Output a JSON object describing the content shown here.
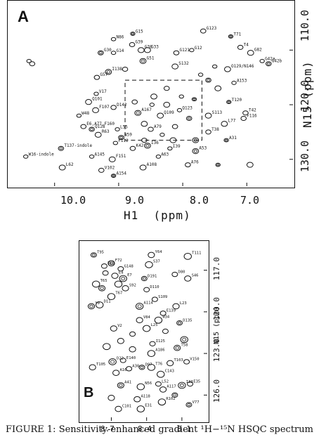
{
  "figure": {
    "caption": "FIGURE 1:  Sensitivity-enhanced gradient ¹H−¹⁵N HSQC spectrum"
  },
  "panel_a": {
    "letter": "A",
    "x_axis_label": "H1  (ppm)",
    "y_axis_label": "N15  (ppm)",
    "x_ticks": [
      "10.0",
      "9.0",
      "8.0",
      "7.0"
    ],
    "y_ticks": [
      "110.0",
      "120.0",
      "130.0"
    ],
    "peak_labels": [
      "G15",
      "G39",
      "G38",
      "N86",
      "G30",
      "G33",
      "G14",
      "G121",
      "G51",
      "G12",
      "G123",
      "S132",
      "T71",
      "T4",
      "G82",
      "G42a",
      "G42b",
      "O129/N146",
      "A153",
      "G57",
      "I138",
      "V17",
      "D142",
      "Q101",
      "T120",
      "T42",
      "F107",
      "W48",
      "Q128",
      "R63",
      "L55",
      "E6,A77,F160",
      "A53",
      "I39",
      "A76",
      "A108",
      "A154",
      "V102",
      "L62",
      "W16-indole",
      "T137-indole",
      "F151",
      "A145",
      "K42",
      "I36",
      "A63",
      "T38",
      "S113",
      "A31",
      "F116",
      "L77",
      "F112",
      "N59",
      "Q109",
      "Q123",
      "A79",
      "A167"
    ]
  },
  "panel_b": {
    "letter": "B",
    "x_axis_label": "H1  (ppm)",
    "y_axis_label": "N15  (ppm)",
    "x_ticks": [
      "8.7",
      "8.4",
      "8.1"
    ],
    "y_ticks": [
      "117.0",
      "120.0",
      "123.0",
      "126.0"
    ],
    "peak_labels": [
      "T95",
      "Y64",
      "T111",
      "T63",
      "F72",
      "S37",
      "G148",
      "E4",
      "E7",
      "D80",
      "S46",
      "T65",
      "D191",
      "S92",
      "T67",
      "D110",
      "Y9",
      "D11",
      "S109",
      "L23",
      "A114",
      "E139",
      "V84",
      "W34",
      "D135",
      "V2",
      "L25",
      "I125",
      "T58",
      "A186",
      "V150",
      "T105",
      "D22",
      "E140",
      "T103",
      "T76",
      "D97",
      "A16",
      "C143",
      "A30",
      "A41",
      "N56",
      "L52",
      "A117",
      "I33",
      "E35",
      "A118",
      "R102",
      "V77",
      "C101",
      "E31"
    ]
  },
  "colors": {
    "ink": "#111111",
    "background": "#ffffff"
  },
  "chart_data": [
    {
      "type": "scatter",
      "title": "",
      "panel": "A",
      "xlabel": "H1  (ppm)",
      "ylabel": "N15  (ppm)",
      "xlim": [
        10.6,
        6.4
      ],
      "ylim": [
        102.5,
        133.5
      ],
      "x_ticks": [
        10.0,
        9.0,
        8.0,
        7.0
      ],
      "y_ticks": [
        110.0,
        120.0,
        130.0
      ],
      "zoom_box": {
        "x": [
          8.9,
          7.7
        ],
        "y": [
          115.5,
          126.5
        ]
      },
      "series": [
        {
          "points": [
            [
              8.78,
              107.0,
              "G15"
            ],
            [
              8.79,
              109.0,
              "G39"
            ],
            [
              8.65,
              110.0,
              "G38"
            ],
            [
              9.08,
              108.0,
              "N86"
            ],
            [
              9.28,
              110.5,
              "G30"
            ],
            [
              8.55,
              110.0,
              "G33"
            ],
            [
              9.08,
              110.5,
              "G14"
            ],
            [
              8.1,
              110.5,
              "G121"
            ],
            [
              8.62,
              112.0,
              "G51"
            ],
            [
              7.86,
              110.0,
              "G12"
            ],
            [
              7.68,
              106.5,
              "G123"
            ],
            [
              8.12,
              113.0,
              "S132"
            ],
            [
              7.25,
              107.5,
              "T71"
            ],
            [
              7.1,
              109.5,
              "T4"
            ],
            [
              6.94,
              110.5,
              "G82"
            ],
            [
              6.76,
              112.0,
              "G42a"
            ],
            [
              6.66,
              112.5,
              "G42b"
            ],
            [
              7.3,
              113.5,
              "O129/N146"
            ],
            [
              7.2,
              116.0,
              "A153"
            ],
            [
              9.34,
              115.0,
              "G57"
            ],
            [
              9.16,
              114.0,
              "I138"
            ],
            [
              9.35,
              118.0,
              "V17"
            ],
            [
              9.08,
              120.5,
              "D142"
            ],
            [
              9.47,
              119.5,
              "Q101"
            ],
            [
              7.28,
              119.5,
              "T120"
            ],
            [
              7.02,
              121.5,
              "T42"
            ],
            [
              9.36,
              121.0,
              "F107"
            ],
            [
              9.62,
              122.0,
              "W48"
            ],
            [
              9.42,
              124.5,
              "Q128"
            ],
            [
              9.32,
              125.5,
              "R63"
            ],
            [
              9.02,
              124.5,
              "L55"
            ],
            [
              9.55,
              124.0,
              "E6,A77,F160"
            ],
            [
              7.8,
              128.5,
              "A53"
            ],
            [
              8.2,
              128.0,
              "I39"
            ],
            [
              7.92,
              131.0,
              "A76"
            ],
            [
              8.62,
              131.5,
              "A108"
            ],
            [
              9.08,
              133.0,
              "A154"
            ],
            [
              9.27,
              132.0,
              "V102"
            ],
            [
              9.88,
              131.5,
              "L62"
            ],
            [
              10.45,
              129.5,
              "W16-indole"
            ],
            [
              9.9,
              128.0,
              "T137-indole"
            ],
            [
              9.1,
              130.0,
              "F151"
            ],
            [
              9.42,
              129.5,
              "A145"
            ],
            [
              8.78,
              128.0,
              "K42"
            ],
            [
              8.55,
              127.5,
              "I36"
            ],
            [
              8.38,
              129.5,
              "A63"
            ],
            [
              7.6,
              125.0,
              "T38"
            ],
            [
              7.6,
              122.0,
              "S113"
            ],
            [
              7.32,
              126.5,
              "A31"
            ],
            [
              7.05,
              122.5,
              "F116"
            ],
            [
              7.35,
              123.5,
              "L77"
            ],
            [
              9.05,
              127.0,
              "F112"
            ],
            [
              8.96,
              126.0,
              "N59"
            ],
            [
              8.35,
              122.0,
              "Q109"
            ],
            [
              8.05,
              121.0,
              "Q123"
            ],
            [
              8.5,
              124.5,
              "A79"
            ],
            [
              8.7,
              121.5,
              "A167"
            ],
            [
              10.4,
              112.0,
              ""
            ],
            [
              10.35,
              112.5,
              ""
            ],
            [
              6.95,
              131.0,
              ""
            ],
            [
              7.45,
              131.0,
              ""
            ],
            [
              8.25,
              117.0,
              ""
            ],
            [
              8.45,
              118.5,
              ""
            ],
            [
              8.02,
              118.5,
              ""
            ],
            [
              7.9,
              122.5,
              ""
            ],
            [
              8.6,
              123.5,
              ""
            ],
            [
              8.32,
              125.5,
              ""
            ],
            [
              8.12,
              124.0,
              ""
            ],
            [
              7.8,
              126.5,
              ""
            ],
            [
              8.48,
              120.0,
              ""
            ],
            [
              8.75,
              119.5,
              ""
            ],
            [
              8.25,
              120.0,
              ""
            ],
            [
              7.82,
              119.0,
              ""
            ],
            [
              8.6,
              126.5,
              ""
            ],
            [
              8.15,
              126.5,
              ""
            ],
            [
              7.72,
              114.5,
              ""
            ],
            [
              7.6,
              115.5,
              ""
            ],
            [
              7.45,
              117.0,
              ""
            ],
            [
              7.5,
              113.0,
              ""
            ],
            [
              8.9,
              113.5,
              ""
            ]
          ]
        }
      ]
    },
    {
      "type": "scatter",
      "title": "",
      "panel": "B",
      "xlabel": "H1  (ppm)",
      "ylabel": "N15  (ppm)",
      "xlim": [
        8.9,
        7.95
      ],
      "ylim": [
        115.5,
        127.3
      ],
      "x_ticks": [
        8.7,
        8.4,
        8.1
      ],
      "y_ticks": [
        117.0,
        120.0,
        123.0,
        126.0
      ],
      "series": [
        {
          "points": [
            [
              8.85,
              115.9,
              "T95"
            ],
            [
              8.36,
              115.9,
              "Y64"
            ],
            [
              8.05,
              116.0,
              "T111"
            ],
            [
              8.76,
              116.7,
              "T63"
            ],
            [
              8.7,
              116.5,
              "F72"
            ],
            [
              8.38,
              116.6,
              "S37"
            ],
            [
              8.62,
              116.9,
              "G148"
            ],
            [
              8.67,
              117.4,
              "E4"
            ],
            [
              8.6,
              117.6,
              "E7"
            ],
            [
              8.16,
              117.3,
              "D80"
            ],
            [
              8.05,
              117.6,
              "S46"
            ],
            [
              8.83,
              118.0,
              "T65"
            ],
            [
              8.42,
              117.6,
              "D191"
            ],
            [
              8.58,
              118.3,
              "S92"
            ],
            [
              8.7,
              118.9,
              "T67"
            ],
            [
              8.4,
              118.4,
              "D110"
            ],
            [
              8.87,
              119.6,
              "Y9"
            ],
            [
              8.8,
              119.5,
              "D11"
            ],
            [
              8.33,
              119.1,
              "S109"
            ],
            [
              8.15,
              119.6,
              "L23"
            ],
            [
              8.46,
              119.6,
              "A114"
            ],
            [
              8.26,
              120.1,
              "E139"
            ],
            [
              8.46,
              120.6,
              "V84"
            ],
            [
              8.3,
              120.6,
              "W34"
            ],
            [
              8.12,
              120.8,
              "D135"
            ],
            [
              8.68,
              121.2,
              "V2"
            ],
            [
              8.4,
              121.2,
              "L25"
            ],
            [
              8.35,
              122.3,
              "I125"
            ],
            [
              8.14,
              122.6,
              "T58"
            ],
            [
              8.36,
              123.0,
              "A186"
            ],
            [
              8.06,
              123.6,
              "V150"
            ],
            [
              8.86,
              124.0,
              "T105"
            ],
            [
              8.69,
              123.6,
              "D22"
            ],
            [
              8.6,
              123.5,
              "E140"
            ],
            [
              8.2,
              123.7,
              "T103"
            ],
            [
              8.36,
              124.0,
              "T76"
            ],
            [
              8.44,
              124.0,
              "D97"
            ],
            [
              8.66,
              124.4,
              "A16"
            ],
            [
              8.28,
              124.5,
              "C143"
            ],
            [
              8.55,
              124.1,
              "A30"
            ],
            [
              8.62,
              125.3,
              "A41"
            ],
            [
              8.45,
              125.4,
              "N56"
            ],
            [
              8.3,
              125.2,
              "L52"
            ],
            [
              8.26,
              125.6,
              "A117"
            ],
            [
              8.1,
              125.3,
              "I33"
            ],
            [
              8.03,
              125.2,
              "E35"
            ],
            [
              8.48,
              126.3,
              "A118"
            ],
            [
              8.27,
              126.5,
              "R102"
            ],
            [
              8.04,
              126.7,
              "V77"
            ],
            [
              8.64,
              127.0,
              "C101"
            ],
            [
              8.45,
              127.0,
              "E31"
            ],
            [
              8.75,
              117.2,
              ""
            ],
            [
              8.78,
              118.3,
              ""
            ],
            [
              8.64,
              118.0,
              ""
            ],
            [
              8.52,
              121.6,
              ""
            ],
            [
              8.62,
              122.1,
              ""
            ],
            [
              8.08,
              122.0,
              ""
            ],
            [
              8.24,
              121.4,
              ""
            ],
            [
              8.52,
              122.7,
              ""
            ],
            [
              8.74,
              122.5,
              ""
            ],
            [
              8.16,
              126.0,
              ""
            ],
            [
              8.7,
              126.2,
              ""
            ]
          ]
        }
      ]
    }
  ]
}
